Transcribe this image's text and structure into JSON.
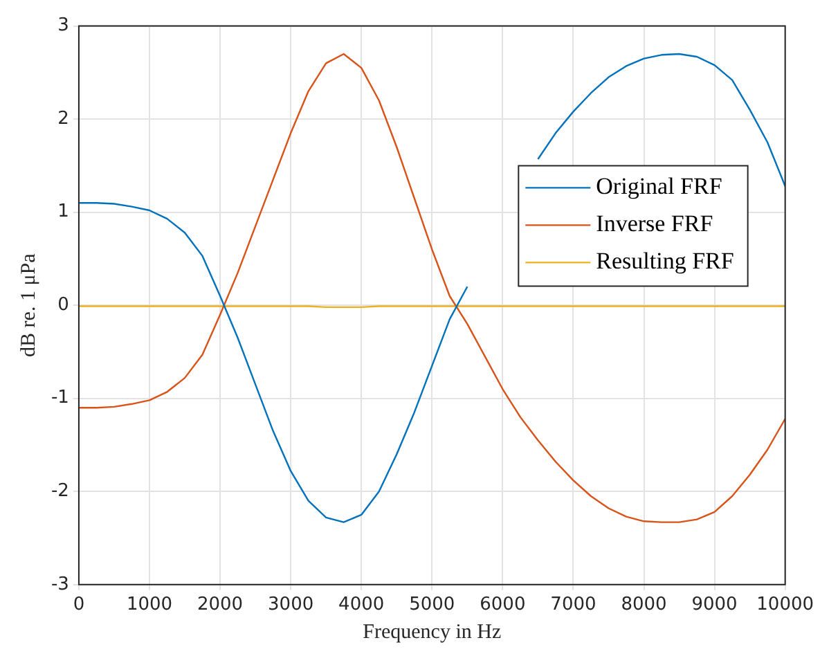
{
  "chart_data": {
    "type": "line",
    "xlabel": "Frequency in Hz",
    "ylabel": "dB re. 1 μPa",
    "xlim": [
      0,
      10000
    ],
    "xticks": [
      0,
      1000,
      2000,
      3000,
      4000,
      5000,
      6000,
      7000,
      8000,
      9000,
      10000
    ],
    "ylim": [
      -3,
      3
    ],
    "yticks": [
      -3,
      -2,
      -1,
      0,
      1,
      2,
      3
    ],
    "grid": true,
    "legend": "right",
    "marker": "none",
    "line_style": "solid",
    "x": [
      0,
      250,
      500,
      750,
      1000,
      1250,
      1500,
      1750,
      2000,
      2250,
      2500,
      2750,
      3000,
      3250,
      3500,
      3750,
      4000,
      4250,
      4500,
      4750,
      5000,
      5250,
      5500,
      5750,
      6000,
      6250,
      6500,
      6750,
      7000,
      7250,
      7500,
      7750,
      8000,
      8250,
      8500,
      8750,
      9000,
      9250,
      9500,
      9750,
      10000
    ],
    "series": [
      {
        "name": "Original FRF",
        "color": "#0072bd",
        "values": [
          1.1,
          1.1,
          1.09,
          1.06,
          1.02,
          0.93,
          0.78,
          0.53,
          0.1,
          -0.35,
          -0.85,
          -1.35,
          -1.78,
          -2.1,
          -2.28,
          -2.33,
          -2.25,
          -2.0,
          -1.6,
          -1.15,
          -0.65,
          -0.15,
          0.2,
          null,
          null,
          null,
          1.57,
          1.85,
          2.08,
          2.28,
          2.45,
          2.57,
          2.65,
          2.69,
          2.7,
          2.67,
          2.58,
          2.42,
          2.1,
          1.75,
          1.28
        ]
      },
      {
        "name": "Inverse FRF",
        "color": "#d95319",
        "values": [
          -1.1,
          -1.1,
          -1.09,
          -1.06,
          -1.02,
          -0.93,
          -0.78,
          -0.53,
          -0.1,
          0.35,
          0.85,
          1.35,
          1.85,
          2.3,
          2.6,
          2.7,
          2.55,
          2.2,
          1.7,
          1.15,
          0.6,
          0.1,
          -0.2,
          -0.55,
          -0.9,
          -1.2,
          -1.45,
          -1.68,
          -1.88,
          -2.05,
          -2.18,
          -2.27,
          -2.32,
          -2.33,
          -2.33,
          -2.3,
          -2.22,
          -2.05,
          -1.82,
          -1.55,
          -1.22
        ]
      },
      {
        "name": "Resulting FRF",
        "color": "#edb120",
        "values": [
          -0.01,
          -0.01,
          -0.01,
          -0.01,
          -0.01,
          -0.01,
          -0.01,
          -0.01,
          -0.01,
          -0.01,
          -0.01,
          -0.01,
          -0.01,
          -0.01,
          -0.02,
          -0.02,
          -0.02,
          -0.01,
          -0.01,
          -0.01,
          -0.01,
          -0.01,
          -0.01,
          -0.01,
          -0.01,
          -0.01,
          -0.01,
          -0.01,
          -0.01,
          -0.01,
          -0.01,
          -0.01,
          -0.01,
          -0.01,
          -0.01,
          -0.01,
          -0.01,
          -0.01,
          -0.01,
          -0.01,
          -0.01
        ]
      }
    ]
  }
}
